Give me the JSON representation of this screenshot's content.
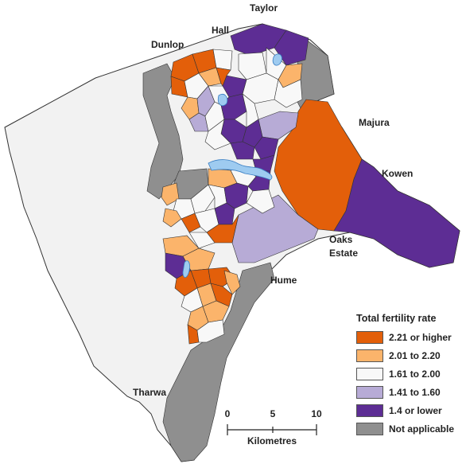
{
  "colors": {
    "orange_dark": "#e35f0a",
    "orange_light": "#fbb46b",
    "white_fill": "#f8f8f8",
    "lavender": "#b7abd6",
    "purple": "#5d2d94",
    "grey": "#8f8f8f",
    "background_area": "#f2f2f2",
    "water": "#9ecbf0",
    "border": "#333333"
  },
  "places": {
    "taylor": "Taylor",
    "hall": "Hall",
    "dunlop": "Dunlop",
    "majura": "Majura",
    "kowen": "Kowen",
    "oaks_estate": [
      "Oaks",
      "Estate"
    ],
    "hume": "Hume",
    "tharwa": "Tharwa"
  },
  "legend": {
    "title": "Total fertility rate",
    "items": [
      {
        "label": "2.21 or higher",
        "color": "#e35f0a"
      },
      {
        "label": "2.01 to 2.20",
        "color": "#fbb46b"
      },
      {
        "label": "1.61 to 2.00",
        "color": "#f8f8f8"
      },
      {
        "label": "1.41 to 1.60",
        "color": "#b7abd6"
      },
      {
        "label": "1.4 or lower",
        "color": "#5d2d94"
      },
      {
        "label": "Not applicable",
        "color": "#8f8f8f"
      }
    ]
  },
  "scale_bar": {
    "ticks": [
      "0",
      "5",
      "10"
    ],
    "unit_label": "Kilometres"
  }
}
